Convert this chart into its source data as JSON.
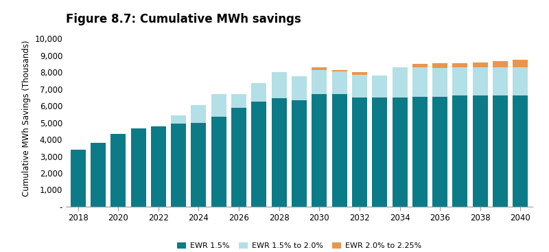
{
  "title": "Figure 8.7: Cumulative MWh savings",
  "ylabel": "Cumulative MWh Savings (Thousands)",
  "years": [
    2018,
    2019,
    2020,
    2021,
    2022,
    2023,
    2024,
    2025,
    2026,
    2027,
    2028,
    2029,
    2030,
    2031,
    2032,
    2033,
    2034,
    2035,
    2036,
    2037,
    2038,
    2039,
    2040
  ],
  "ewr_1p5": [
    3400,
    3800,
    4350,
    4650,
    4800,
    4950,
    5000,
    5350,
    5900,
    6250,
    6450,
    6350,
    6700,
    6700,
    6500,
    6500,
    6500,
    6550,
    6550,
    6600,
    6600,
    6600,
    6600
  ],
  "ewr_1p5_to_2p0": [
    0,
    0,
    0,
    0,
    0,
    500,
    1050,
    1350,
    800,
    1100,
    1550,
    1400,
    1450,
    1350,
    1350,
    1300,
    1800,
    1750,
    1700,
    1700,
    1700,
    1700,
    1700
  ],
  "ewr_2p0_to_2p25": [
    0,
    0,
    0,
    0,
    0,
    0,
    0,
    0,
    0,
    0,
    0,
    0,
    130,
    100,
    150,
    0,
    0,
    200,
    300,
    250,
    300,
    350,
    450
  ],
  "color_1p5": "#0b7b87",
  "color_1p5_to_2p0": "#b3dfe6",
  "color_2p0_to_2p25": "#e8964d",
  "yticks": [
    0,
    1000,
    2000,
    3000,
    4000,
    5000,
    6000,
    7000,
    8000,
    9000,
    10000
  ],
  "ytick_labels": [
    "-",
    "1,000",
    "2,000",
    "3,000",
    "4,000",
    "5,000",
    "6,000",
    "7,000",
    "8,000",
    "9,000",
    "10,000"
  ],
  "xtick_years": [
    2018,
    2020,
    2022,
    2024,
    2026,
    2028,
    2030,
    2032,
    2034,
    2036,
    2038,
    2040
  ],
  "legend_labels": [
    "EWR 1.5%",
    "EWR 1.5% to 2.0%",
    "EWR 2.0% to 2.25%"
  ],
  "background_color": "#ffffff",
  "ylim": [
    0,
    10500
  ],
  "title_fontsize": 12,
  "axis_fontsize": 8.5,
  "legend_fontsize": 8,
  "bar_width": 0.75,
  "figsize": [
    8.0,
    3.67
  ],
  "dpi": 100
}
